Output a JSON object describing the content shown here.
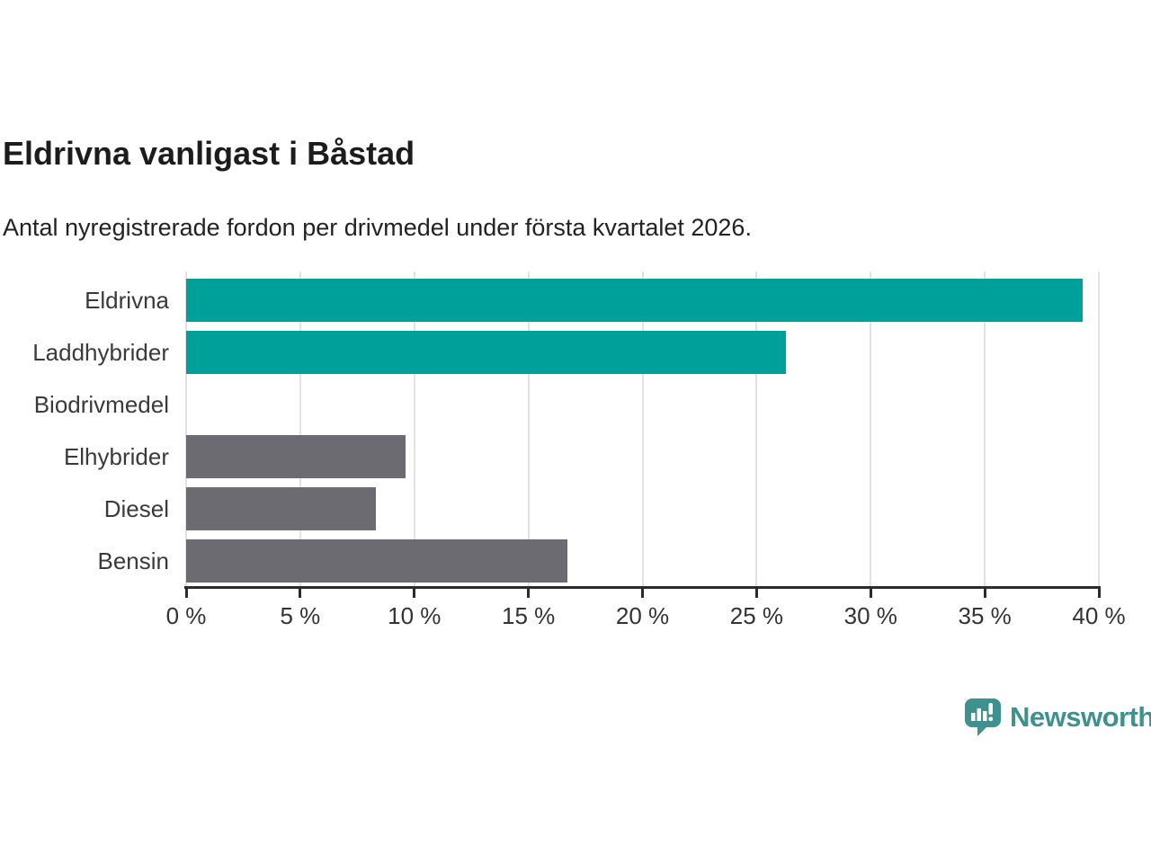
{
  "title": "Eldrivna vanligast i Båstad",
  "subtitle": "Antal nyregistrerade fordon per drivmedel under första kvartalet 2026.",
  "chart_data": {
    "type": "bar",
    "orientation": "horizontal",
    "title": "Eldrivna vanligast i Båstad",
    "subtitle": "Antal nyregistrerade fordon per drivmedel under första kvartalet 2026.",
    "categories": [
      "Eldrivna",
      "Laddhybrider",
      "Biodrivmedel",
      "Elhybrider",
      "Diesel",
      "Bensin"
    ],
    "values": [
      39.3,
      26.3,
      0,
      9.6,
      8.3,
      16.7
    ],
    "unit": "%",
    "xlim": [
      0,
      40
    ],
    "tick_step": 5,
    "x_tick_labels": [
      "0 %",
      "5 %",
      "10 %",
      "15 %",
      "20 %",
      "25 %",
      "30 %",
      "35 %",
      "40 %"
    ],
    "grid": true,
    "legend": false,
    "bar_colors": [
      "#00a09a",
      "#00a09a",
      "#00a09a",
      "#6c6b71",
      "#6c6b71",
      "#6c6b71"
    ]
  },
  "branding": {
    "logo_text": "Newsworthy",
    "logo_color": "#3e918e"
  },
  "colors": {
    "teal_bar": "#00a09a",
    "gray_bar": "#6c6b71",
    "grid": "#e2e2e2",
    "axis": "#2b2b2b",
    "title_text": "#1c1c1c",
    "label_text": "#3a3a3a"
  }
}
